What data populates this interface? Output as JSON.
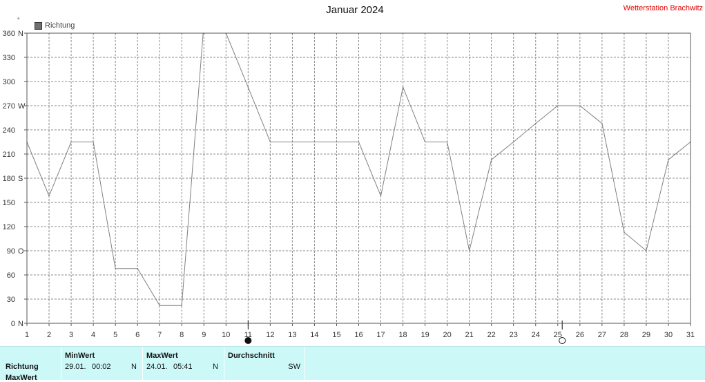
{
  "header": {
    "title": "Januar 2024",
    "station": "Wetterstation Brachwitz",
    "degree_symbol": "°"
  },
  "legend": {
    "label": "Richtung",
    "swatch_color": "#707070"
  },
  "chart_data": {
    "type": "line",
    "title": "Januar 2024",
    "series": [
      {
        "name": "Richtung",
        "color": "#808080",
        "values": [
          225,
          158,
          225,
          225,
          68,
          68,
          22,
          22,
          372,
          360,
          293,
          225,
          225,
          225,
          225,
          225,
          158,
          293,
          225,
          225,
          90,
          203,
          225,
          248,
          270,
          270,
          248,
          113,
          90,
          203,
          225
        ]
      }
    ],
    "x": [
      1,
      2,
      3,
      4,
      5,
      6,
      7,
      8,
      9,
      10,
      11,
      12,
      13,
      14,
      15,
      16,
      17,
      18,
      19,
      20,
      21,
      22,
      23,
      24,
      25,
      26,
      27,
      28,
      29,
      30,
      31
    ],
    "xlim": [
      1,
      31
    ],
    "ylim": [
      0,
      360
    ],
    "y_ticks": [
      0,
      30,
      60,
      90,
      120,
      150,
      180,
      210,
      240,
      270,
      300,
      330,
      360
    ],
    "y_tick_labels": [
      "0",
      "30",
      "60",
      "90",
      "120",
      "150",
      "180",
      "210",
      "240",
      "270",
      "300",
      "330",
      "360"
    ],
    "compass_labels": [
      {
        "value": 0,
        "label": "N"
      },
      {
        "value": 90,
        "label": "O"
      },
      {
        "value": 180,
        "label": "S"
      },
      {
        "value": 270,
        "label": "W"
      },
      {
        "value": 360,
        "label": "N"
      }
    ],
    "x_tick_labels": [
      "1",
      "2",
      "3",
      "4",
      "5",
      "6",
      "7",
      "8",
      "9",
      "10",
      "11",
      "12",
      "13",
      "14",
      "15",
      "16",
      "17",
      "18",
      "19",
      "20",
      "21",
      "22",
      "23",
      "24",
      "25",
      "26",
      "27",
      "28",
      "29",
      "30",
      "31"
    ],
    "grid": true,
    "moon_phases": [
      {
        "day": 11.0,
        "phase": "new"
      },
      {
        "day": 25.2,
        "phase": "full"
      }
    ]
  },
  "footer": {
    "row_labels": [
      "Richtung",
      "MaxWert"
    ],
    "min": {
      "header": "MinWert",
      "date": "29.01.",
      "time": "00:02",
      "dir": "N"
    },
    "max": {
      "header": "MaxWert",
      "date": "24.01.",
      "time": "05:41",
      "dir": "N"
    },
    "avg": {
      "header": "Durchschnitt",
      "dir": "SW"
    }
  }
}
